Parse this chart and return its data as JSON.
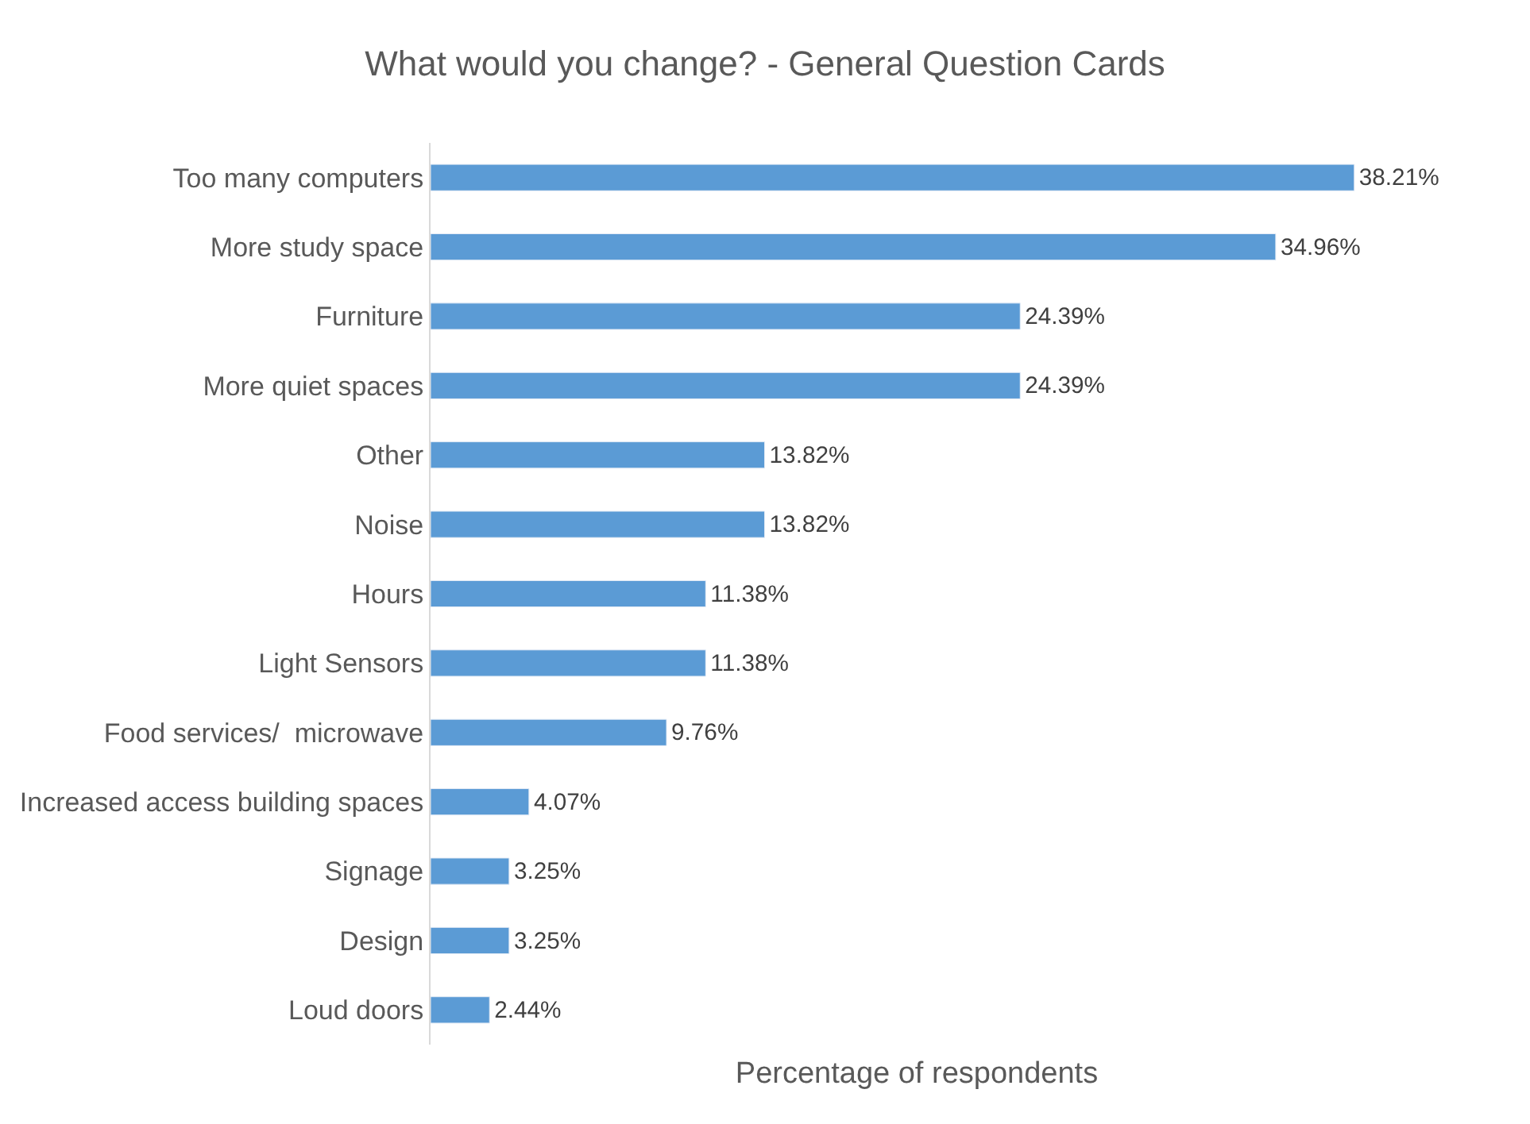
{
  "chart_data": {
    "type": "bar",
    "orientation": "horizontal",
    "title": "What would you change? - General Question Cards",
    "xlabel": "Percentage of respondents",
    "categories": [
      "Too many computers",
      "More study space",
      "Furniture",
      "More quiet spaces",
      "Other",
      "Noise",
      "Hours",
      "Light Sensors",
      "Food services/  microwave",
      "Increased access building spaces",
      "Signage",
      "Design",
      "Loud doors"
    ],
    "values": [
      38.21,
      34.96,
      24.39,
      24.39,
      13.82,
      13.82,
      11.38,
      11.38,
      9.76,
      4.07,
      3.25,
      3.25,
      2.44
    ],
    "value_labels": [
      "38.21%",
      "34.96%",
      "24.39%",
      "24.39%",
      "13.82%",
      "13.82%",
      "11.38%",
      "11.38%",
      "9.76%",
      "4.07%",
      "3.25%",
      "3.25%",
      "2.44%"
    ],
    "color": "#5b9bd5",
    "tick_labels": "y",
    "legend": false
  }
}
